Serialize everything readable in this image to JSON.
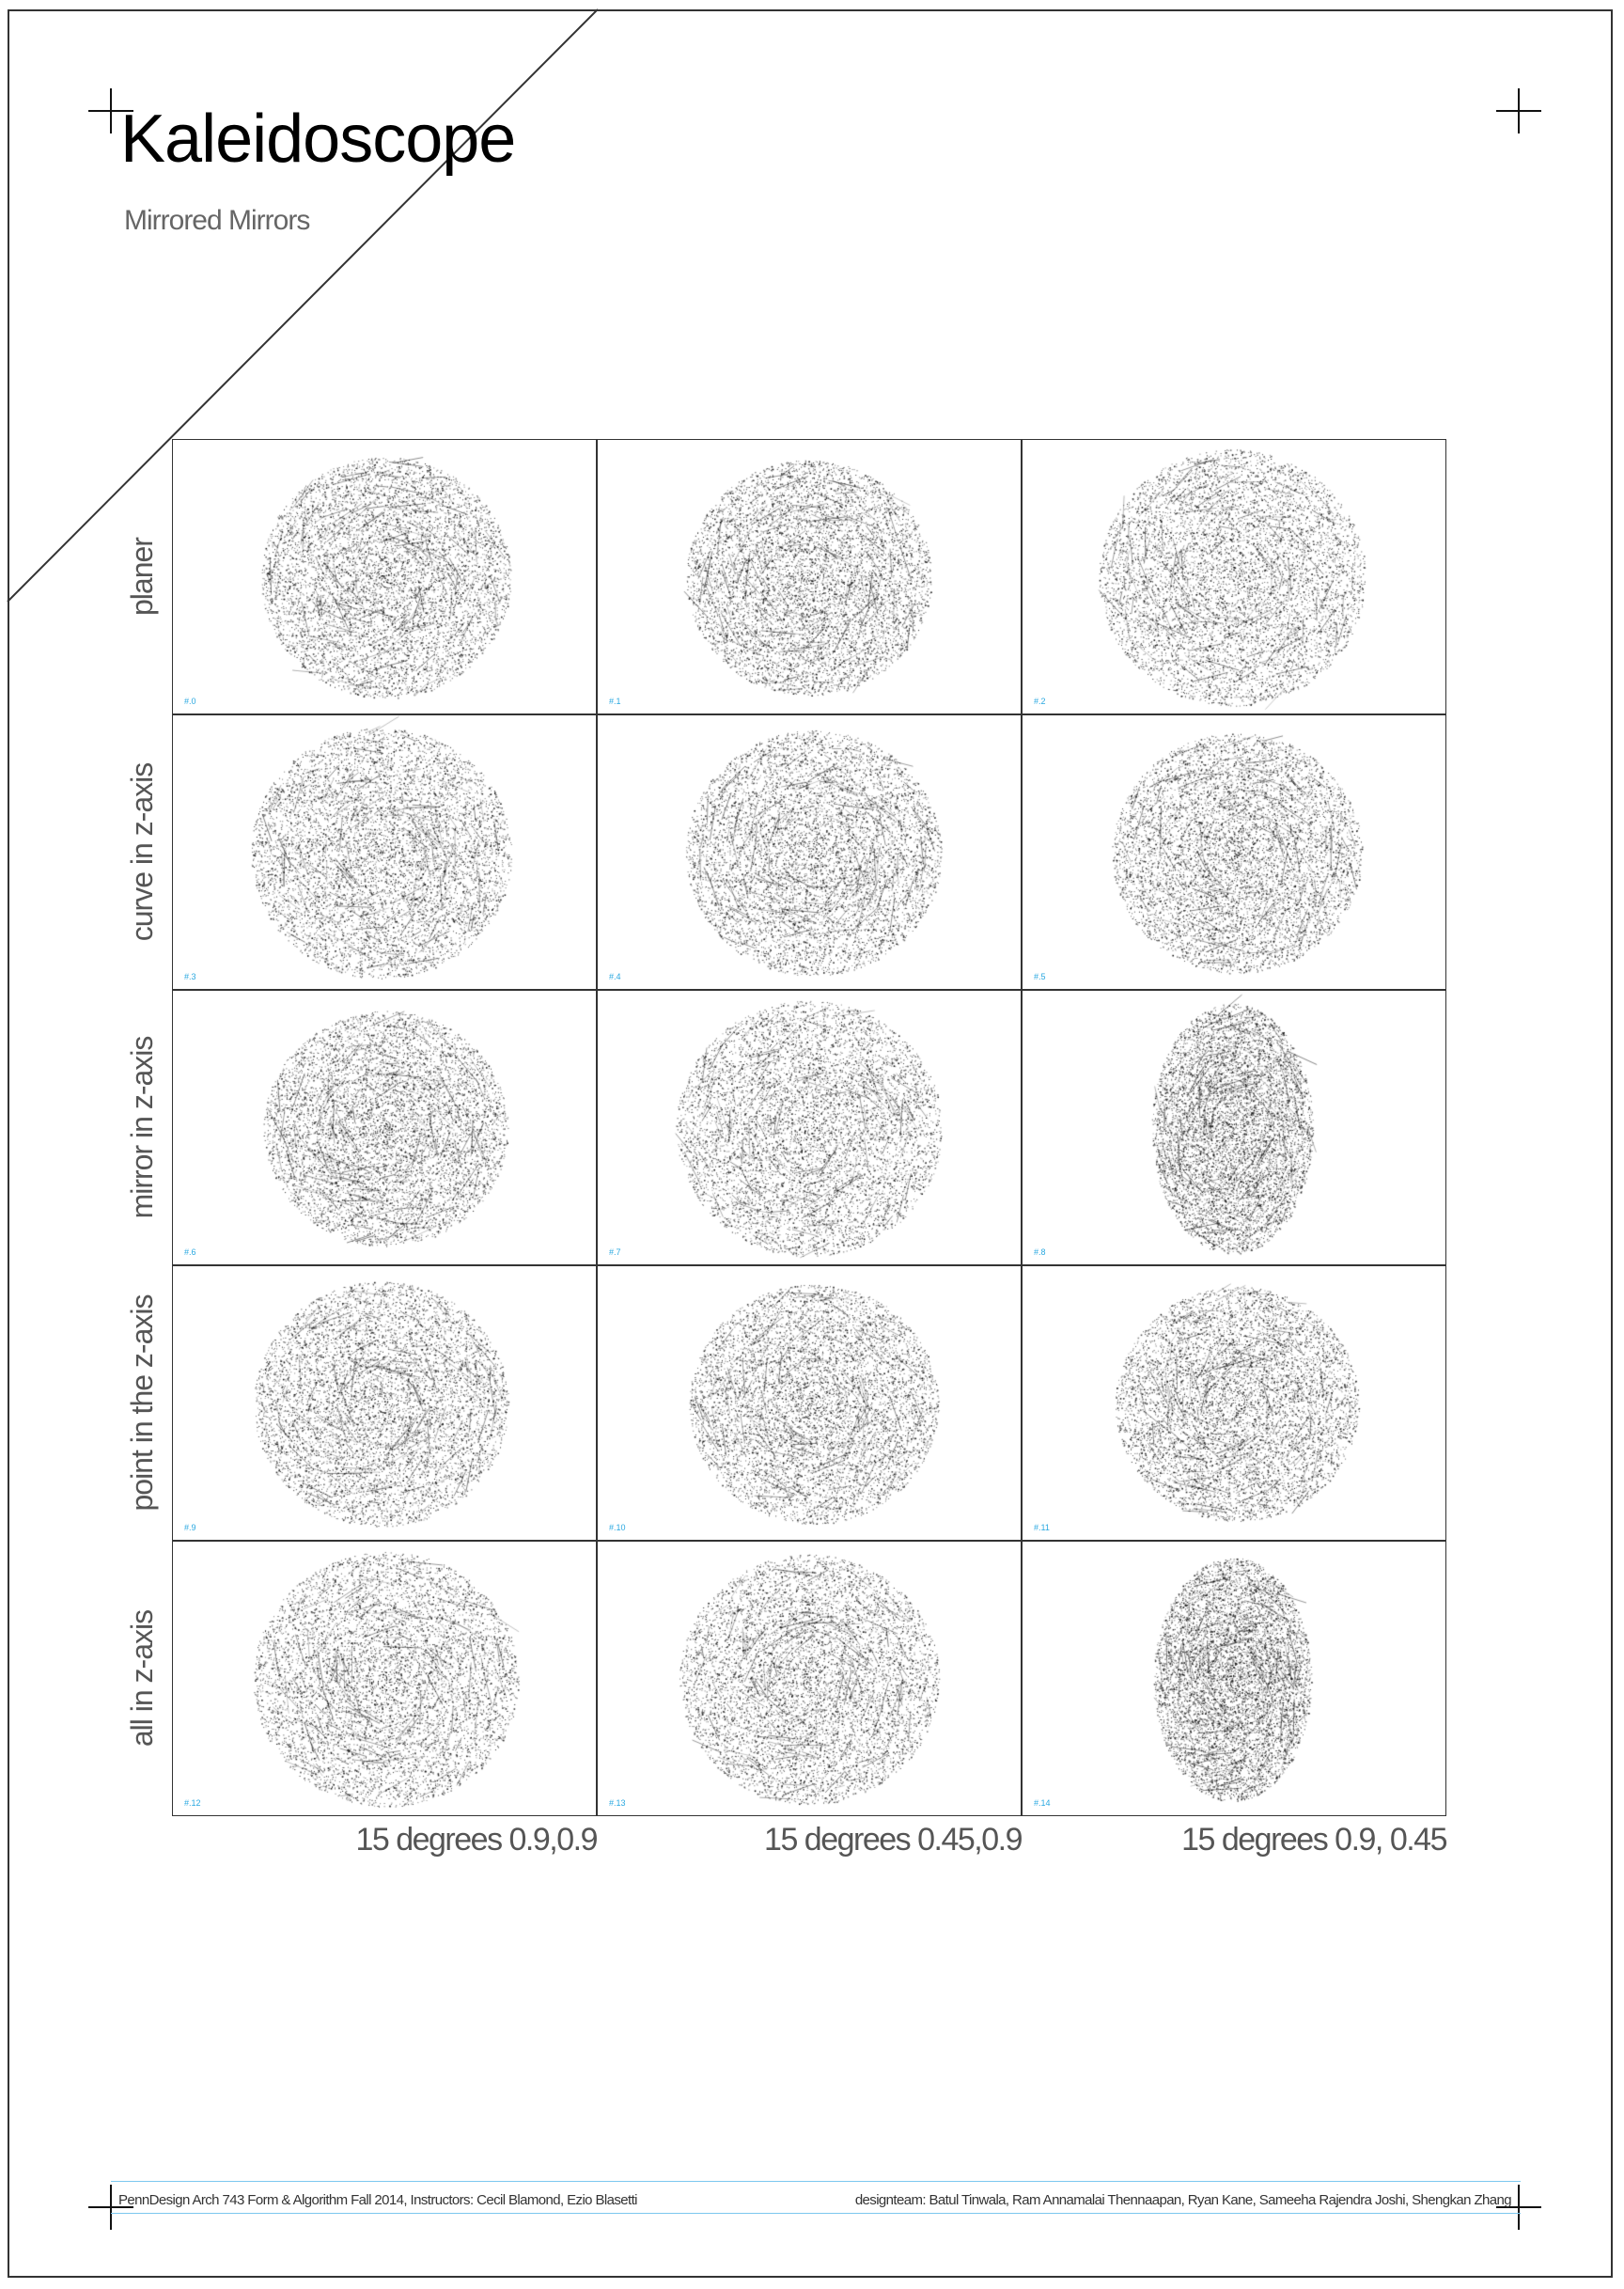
{
  "title": "Kaleidoscope",
  "subtitle": "Mirrored Mirrors",
  "row_labels": [
    "planer",
    "curve in z-axis",
    "mirror in z-axis",
    "point in the z-axis",
    "all in z-axis"
  ],
  "column_labels": [
    "15 degrees 0.9,0.9",
    "15 degrees 0.45,0.9",
    "15 degrees  0.9, 0.45"
  ],
  "cells": [
    {
      "id": "#.0"
    },
    {
      "id": "#.1"
    },
    {
      "id": "#.2"
    },
    {
      "id": "#.3"
    },
    {
      "id": "#.4"
    },
    {
      "id": "#.5"
    },
    {
      "id": "#.6"
    },
    {
      "id": "#.7"
    },
    {
      "id": "#.8"
    },
    {
      "id": "#.9"
    },
    {
      "id": "#.10"
    },
    {
      "id": "#.11"
    },
    {
      "id": "#.12"
    },
    {
      "id": "#.13"
    },
    {
      "id": "#.14"
    }
  ],
  "footer": {
    "left": "PennDesign Arch 743 Form & Algorithm Fall 2014, Instructors: Cecil Blamond, Ezio Blasetti",
    "right": "designteam:  Batul Tinwala, Ram Annamalai Thennaapan, Ryan Kane, Sameeha Rajendra Joshi,  Shengkan Zhang"
  },
  "colors": {
    "accent": "#2aa8e0",
    "rule": "#7cc7ef",
    "ink": "#111111"
  }
}
